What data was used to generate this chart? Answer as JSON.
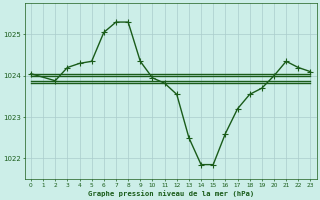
{
  "background_color": "#cceee8",
  "grid_color": "#aacccc",
  "line_color": "#1a5c1a",
  "title": "Graphe pression niveau de la mer (hPa)",
  "xlim": [
    -0.5,
    23.5
  ],
  "ylim": [
    1021.5,
    1025.75
  ],
  "yticks": [
    1022,
    1023,
    1024,
    1025
  ],
  "xticks": [
    0,
    1,
    2,
    3,
    4,
    5,
    6,
    7,
    8,
    9,
    10,
    11,
    12,
    13,
    14,
    15,
    16,
    17,
    18,
    19,
    20,
    21,
    22,
    23
  ],
  "series": [
    {
      "x": [
        0,
        1,
        2,
        3,
        4,
        5,
        6,
        7,
        8,
        9,
        10,
        11,
        12,
        13,
        14,
        15,
        16,
        17,
        18,
        19,
        20,
        21,
        22,
        23
      ],
      "y": [
        1024.0,
        1024.0,
        1024.0,
        1024.0,
        1024.0,
        1024.0,
        1024.0,
        1024.0,
        1024.0,
        1024.0,
        1024.0,
        1024.0,
        1024.0,
        1024.0,
        1024.0,
        1024.0,
        1024.0,
        1024.0,
        1024.0,
        1024.0,
        1024.0,
        1024.0,
        1024.0,
        1024.0
      ],
      "marker": null,
      "linewidth": 1.0
    },
    {
      "x": [
        0,
        1,
        2,
        3,
        4,
        5,
        6,
        7,
        8,
        9,
        10,
        11,
        12,
        13,
        14,
        15,
        16,
        17,
        18,
        19,
        20,
        21,
        22,
        23
      ],
      "y": [
        1024.05,
        1024.05,
        1024.05,
        1024.05,
        1024.05,
        1024.05,
        1024.05,
        1024.05,
        1024.05,
        1024.05,
        1024.05,
        1024.05,
        1024.05,
        1024.05,
        1024.05,
        1024.05,
        1024.05,
        1024.05,
        1024.05,
        1024.05,
        1024.05,
        1024.05,
        1024.05,
        1024.05
      ],
      "marker": null,
      "linewidth": 1.0
    },
    {
      "x": [
        0,
        1,
        2,
        3,
        4,
        5,
        6,
        7,
        8,
        9,
        10,
        11,
        12,
        13,
        14,
        15,
        16,
        17,
        18,
        19,
        20,
        21,
        22,
        23
      ],
      "y": [
        1023.88,
        1023.88,
        1023.88,
        1023.88,
        1023.88,
        1023.88,
        1023.88,
        1023.88,
        1023.88,
        1023.88,
        1023.88,
        1023.88,
        1023.88,
        1023.88,
        1023.88,
        1023.88,
        1023.88,
        1023.88,
        1023.88,
        1023.88,
        1023.88,
        1023.88,
        1023.88,
        1023.88
      ],
      "marker": null,
      "linewidth": 1.0
    },
    {
      "x": [
        0,
        1,
        2,
        3,
        4,
        5,
        6,
        7,
        8,
        9,
        10,
        11,
        12,
        13,
        14,
        15,
        16,
        17,
        18,
        19,
        20,
        21,
        22,
        23
      ],
      "y": [
        1023.82,
        1023.82,
        1023.82,
        1023.82,
        1023.82,
        1023.82,
        1023.82,
        1023.82,
        1023.82,
        1023.82,
        1023.82,
        1023.82,
        1023.82,
        1023.82,
        1023.82,
        1023.82,
        1023.82,
        1023.82,
        1023.82,
        1023.82,
        1023.82,
        1023.82,
        1023.82,
        1023.82
      ],
      "marker": null,
      "linewidth": 1.0
    },
    {
      "x": [
        0,
        2,
        3,
        4,
        5,
        6,
        7,
        8,
        9,
        10,
        11,
        12,
        13,
        14,
        15,
        16,
        17,
        18,
        19,
        20,
        21,
        22,
        23
      ],
      "y": [
        1024.05,
        1023.88,
        1024.2,
        1024.3,
        1024.35,
        1025.05,
        1025.3,
        1025.3,
        1024.35,
        1023.95,
        1023.82,
        1023.55,
        1022.5,
        1021.85,
        1021.85,
        1022.6,
        1023.2,
        1023.55,
        1023.7,
        1024.0,
        1024.35,
        1024.2,
        1024.1
      ],
      "marker": "+",
      "markersize": 4,
      "linewidth": 1.0
    }
  ]
}
